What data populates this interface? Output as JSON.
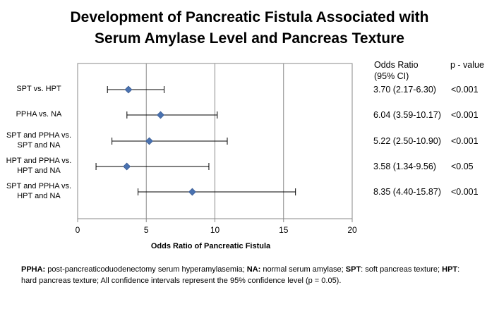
{
  "chart_data": {
    "type": "forest",
    "title_lines": [
      "Development of Pancreatic Fistula Associated with",
      "Serum Amylase Level and Pancreas Texture"
    ],
    "xlabel": "Odds Ratio of Pancreatic Fistula",
    "xlim": [
      0,
      20
    ],
    "xticks": [
      0,
      5,
      10,
      15,
      20
    ],
    "grid": "vertical",
    "marker_color": "#4a72b0",
    "rows": [
      {
        "label_lines": [
          "SPT vs. HPT"
        ],
        "or": 3.7,
        "ci_low": 2.17,
        "ci_high": 6.3,
        "or_text": "3.70 (2.17-6.30)",
        "p_text": "<0.001"
      },
      {
        "label_lines": [
          "PPHA vs. NA"
        ],
        "or": 6.04,
        "ci_low": 3.59,
        "ci_high": 10.17,
        "or_text": "6.04 (3.59-10.17)",
        "p_text": "<0.001"
      },
      {
        "label_lines": [
          "SPT and PPHA vs.",
          "SPT and NA"
        ],
        "or": 5.22,
        "ci_low": 2.5,
        "ci_high": 10.9,
        "or_text": "5.22 (2.50-10.90)",
        "p_text": "<0.001"
      },
      {
        "label_lines": [
          "HPT and PPHA vs.",
          "HPT and NA"
        ],
        "or": 3.58,
        "ci_low": 1.34,
        "ci_high": 9.56,
        "or_text": "3.58 (1.34-9.56)",
        "p_text": "<0.05"
      },
      {
        "label_lines": [
          "SPT and PPHA vs.",
          "HPT and NA"
        ],
        "or": 8.35,
        "ci_low": 4.4,
        "ci_high": 15.87,
        "or_text": "8.35 (4.40-15.87)",
        "p_text": "<0.001"
      }
    ],
    "col_headers": {
      "or_line1": "Odds Ratio",
      "or_line2": "(95% CI)",
      "p": "p - value"
    }
  },
  "footnote": {
    "abbr1": "PPHA:",
    "def1": " post-pancreaticoduodenectomy serum hyperamylasemia; ",
    "abbr2": "NA:",
    "def2": " normal serum amylase; ",
    "abbr3": "SPT",
    "def3": ":  soft pancreas texture;  ",
    "abbr4": "HPT",
    "def4": ":  hard pancreas texture; All confidence intervals represent the 95% confidence level (p = 0.05)."
  }
}
